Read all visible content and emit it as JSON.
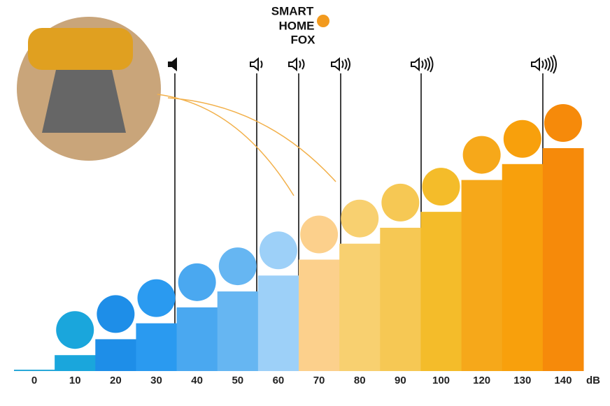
{
  "logo": {
    "line1": "SMART",
    "line2": "HOME",
    "line3": "FOX"
  },
  "chart_data": {
    "type": "bar",
    "categories": [
      "0",
      "10",
      "20",
      "30",
      "40",
      "50",
      "60",
      "70",
      "80",
      "90",
      "100",
      "120",
      "130",
      "140"
    ],
    "values": [
      0,
      10,
      20,
      30,
      40,
      50,
      60,
      70,
      80,
      90,
      100,
      120,
      130,
      140
    ],
    "colors": [
      "#2aa8d8",
      "#1aa6dc",
      "#1e8ee8",
      "#2a9af0",
      "#4aa8f0",
      "#66b6f2",
      "#9dd0f8",
      "#fcd08c",
      "#f8d070",
      "#f6c854",
      "#f4bc2a",
      "#f6a81a",
      "#f8a00c",
      "#f68a0a"
    ],
    "ylim": [
      0,
      140
    ],
    "x_label": "dB"
  }
}
